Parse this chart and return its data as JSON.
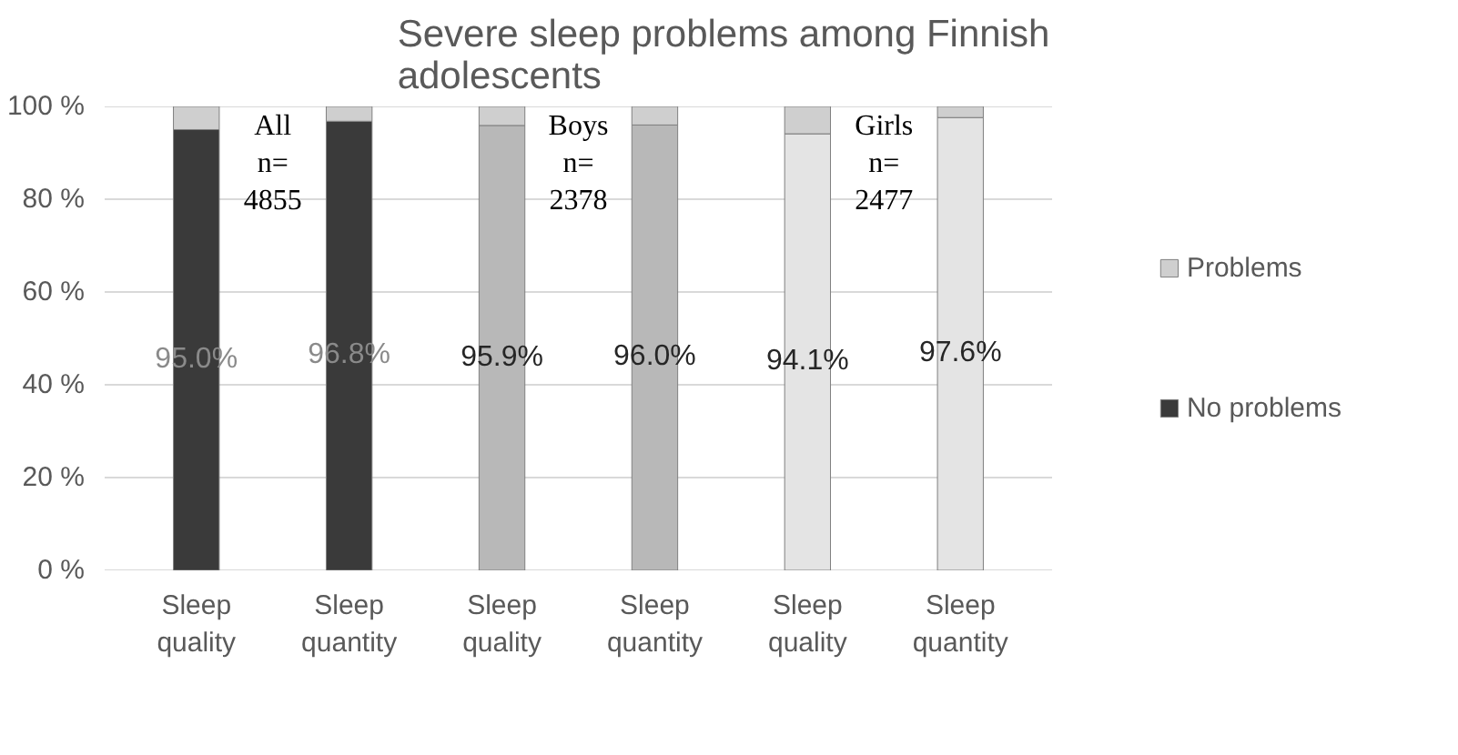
{
  "chart_data": {
    "type": "bar",
    "title": "Severe sleep problems among Finnish adolescents",
    "stacked": true,
    "categories": [
      "Sleep quality",
      "Sleep quantity",
      "Sleep quality",
      "Sleep quantity",
      "Sleep quality",
      "Sleep quantity"
    ],
    "series": [
      {
        "name": "No problems",
        "colors": [
          "#3a3a3a",
          "#3a3a3a",
          "#b8b8b8",
          "#b8b8b8",
          "#e4e4e4",
          "#e4e4e4"
        ],
        "values": [
          95.0,
          96.8,
          95.9,
          96.0,
          94.1,
          97.6
        ],
        "value_labels": [
          "95.0%",
          "96.8%",
          "95.9%",
          "96.0%",
          "94.1%",
          "97.6%"
        ]
      },
      {
        "name": "Problems",
        "color": "#cfcfcf",
        "values": [
          5.0,
          3.2,
          4.1,
          4.0,
          5.9,
          2.4
        ]
      }
    ],
    "ylim": [
      0,
      100
    ],
    "yticks": [
      {
        "value": 0,
        "label": "0 %"
      },
      {
        "value": 20,
        "label": "20 %"
      },
      {
        "value": 40,
        "label": "40 %"
      },
      {
        "value": 60,
        "label": "60 %"
      },
      {
        "value": 80,
        "label": "80 %"
      },
      {
        "value": 100,
        "label": "100 %"
      }
    ],
    "grid": "y",
    "legend": "right",
    "annotations": [
      "All n= 4855",
      "Boys n= 2378",
      "Girls n= 2477"
    ]
  }
}
